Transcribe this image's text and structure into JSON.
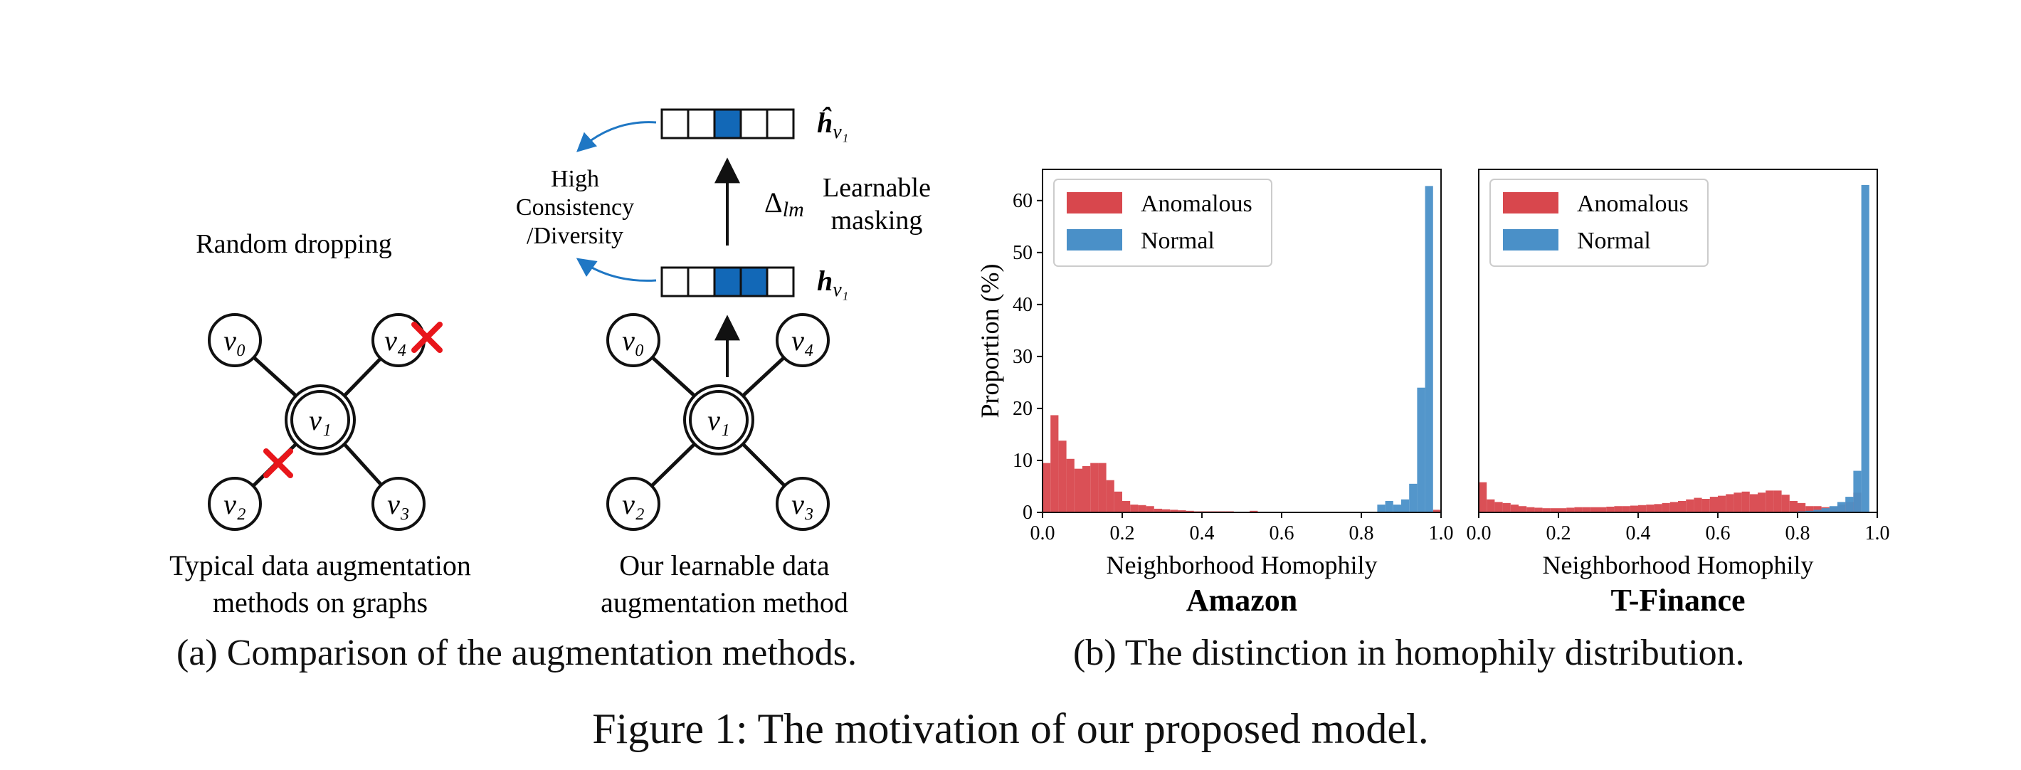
{
  "panel_a": {
    "random_dropping_label": "Random dropping",
    "left_caption_line1": "Typical data augmentation",
    "left_caption_line2": "methods on graphs",
    "right_caption_line1": "Our learnable data",
    "right_caption_line2": "augmentation method",
    "consistency_line1": "High",
    "consistency_line2": "Consistency",
    "consistency_line3": "/Diversity",
    "delta_label": "Δ",
    "delta_sub": "lm",
    "learnable_masking_line1": "Learnable",
    "learnable_masking_line2": "masking",
    "hhat_label": "ĥ",
    "h_label": "h",
    "h_sub": "v₁",
    "nodes": {
      "v0": "v₀",
      "v1": "v₁",
      "v2": "v₂",
      "v3": "v₃",
      "v4": "v₄"
    },
    "cross_color": "#e8161b",
    "mask_color": "#1268b7",
    "arrow_color": "#1f77c4",
    "subcaption_tag": "(a)",
    "subcaption": "Comparison of the augmentation methods."
  },
  "panel_b": {
    "subcaption_tag": "(b)",
    "subcaption": "The distinction in homophily distribution."
  },
  "figure_caption": "Figure 1: The motivation of our proposed model.",
  "chart_data": [
    {
      "type": "bar",
      "title": "Amazon",
      "xlabel": "Neighborhood Homophily",
      "ylabel": "Proportion (%)",
      "xlim": [
        0,
        1
      ],
      "ylim": [
        0,
        66
      ],
      "xticks": [
        "0.0",
        "0.2",
        "0.4",
        "0.6",
        "0.8",
        "1.0"
      ],
      "yticks": [
        "0",
        "10",
        "20",
        "30",
        "40",
        "50",
        "60"
      ],
      "legend": "top-left",
      "bin_width": 0.02,
      "series": [
        {
          "name": "Anomalous",
          "color": "#d8474d",
          "values": [
            9.5,
            18.7,
            13.8,
            10.3,
            8.4,
            8.9,
            9.5,
            9.5,
            6.2,
            4.0,
            2.2,
            1.5,
            1.4,
            1.2,
            0.7,
            0.6,
            0.5,
            0.4,
            0.3,
            0.2,
            0.2,
            0.2,
            0.2,
            0.2,
            0.1,
            0.1,
            0.3,
            0.1,
            0.1,
            0.1,
            0.1,
            0.1,
            0.1,
            0.1,
            0.1,
            0.1,
            0.1,
            0.1,
            0.1,
            0.1,
            0.1,
            0.1,
            0.1,
            0.1,
            0.1,
            0.1,
            0.1,
            0.1,
            0.1,
            0.5
          ]
        },
        {
          "name": "Normal",
          "color": "#4a90c8",
          "values": [
            0,
            0,
            0,
            0,
            0,
            0,
            0,
            0,
            0,
            0,
            0,
            0,
            0,
            0,
            0,
            0,
            0,
            0,
            0,
            0,
            0,
            0,
            0,
            0,
            0,
            0,
            0,
            0,
            0,
            0,
            0,
            0,
            0,
            0,
            0,
            0,
            0,
            0,
            0,
            0,
            0,
            0,
            1.5,
            2.2,
            1.5,
            2.5,
            5.5,
            24.0,
            62.8,
            0
          ]
        }
      ]
    },
    {
      "type": "bar",
      "title": "T-Finance",
      "xlabel": "Neighborhood Homophily",
      "ylabel": "",
      "xlim": [
        0,
        1
      ],
      "ylim": [
        0,
        66
      ],
      "xticks": [
        "0.0",
        "0.2",
        "0.4",
        "0.6",
        "0.8",
        "1.0"
      ],
      "yticks": [],
      "legend": "top-left",
      "bin_width": 0.02,
      "series": [
        {
          "name": "Anomalous",
          "color": "#d8474d",
          "values": [
            5.8,
            2.5,
            2.0,
            1.8,
            1.5,
            1.2,
            1.0,
            0.9,
            0.8,
            0.8,
            0.8,
            0.9,
            1.0,
            1.0,
            1.0,
            1.0,
            1.1,
            1.2,
            1.2,
            1.3,
            1.4,
            1.5,
            1.6,
            1.8,
            2.0,
            2.2,
            2.5,
            2.8,
            2.6,
            3.0,
            3.2,
            3.5,
            3.8,
            4.0,
            3.5,
            3.8,
            4.2,
            4.2,
            3.4,
            2.2,
            1.8,
            1.2,
            1.2,
            1.0,
            1.0,
            1.5,
            2.0,
            3.8,
            0,
            0
          ]
        },
        {
          "name": "Normal",
          "color": "#4a90c8",
          "values": [
            0,
            0,
            0,
            0,
            0,
            0,
            0,
            0,
            0,
            0,
            0,
            0,
            0,
            0,
            0,
            0,
            0,
            0,
            0,
            0,
            0,
            0,
            0,
            0,
            0,
            0,
            0,
            0,
            0,
            0,
            0,
            0,
            0,
            0,
            0,
            0,
            0,
            0,
            0,
            0,
            0.2,
            0.3,
            0.5,
            0.8,
            1.2,
            2.0,
            3.0,
            8.0,
            63.0,
            0
          ]
        }
      ]
    }
  ]
}
